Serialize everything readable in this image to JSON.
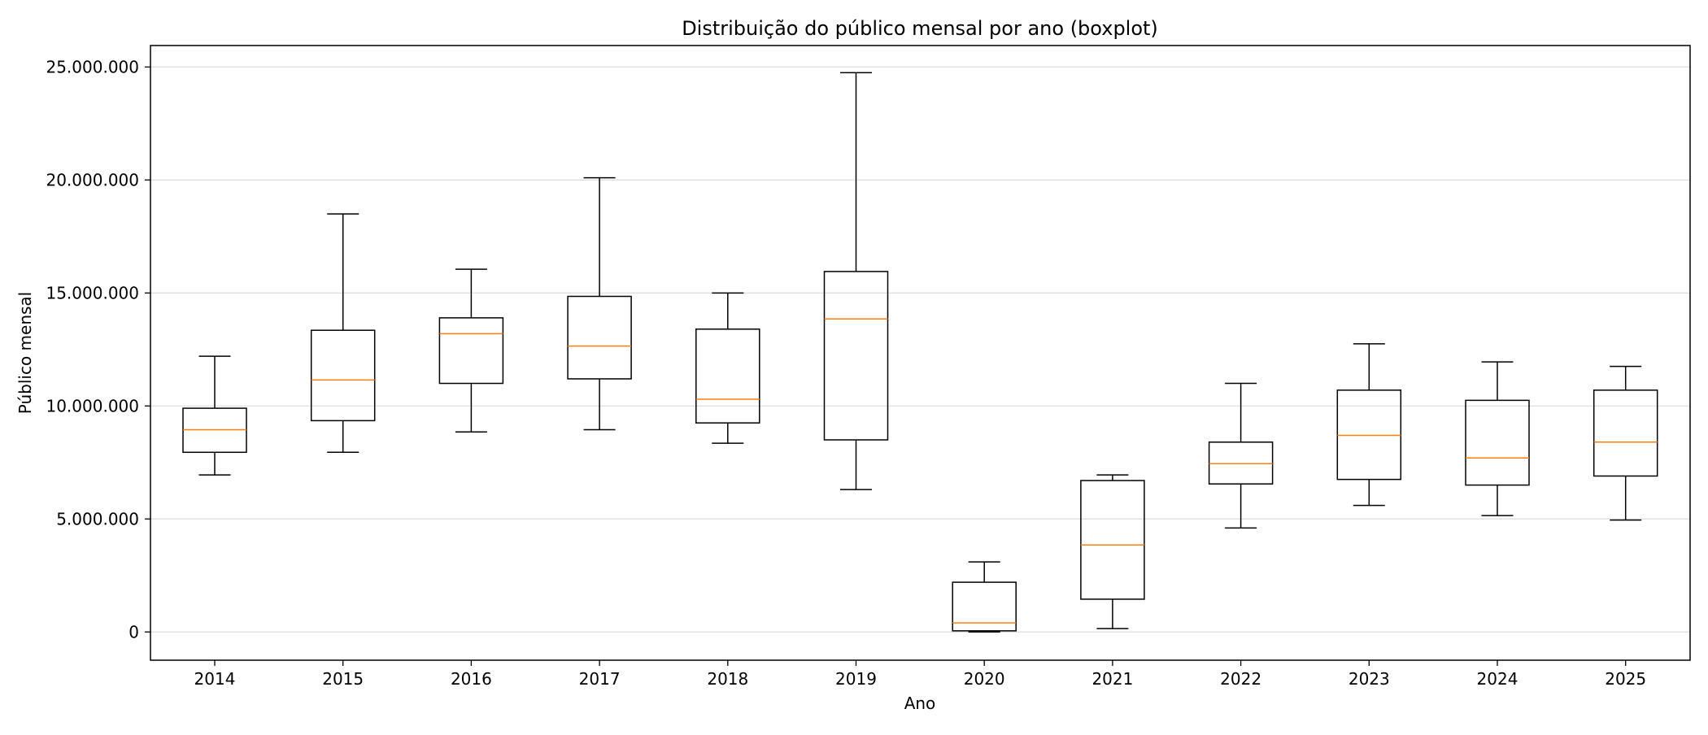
{
  "chart_data": {
    "type": "boxplot",
    "title": "Distribuição do público mensal por ano (boxplot)",
    "xlabel": "Ano",
    "ylabel": "Público mensal",
    "ylim": [
      -1250000,
      25950000
    ],
    "yticks": [
      0,
      5000000,
      10000000,
      15000000,
      20000000,
      25000000
    ],
    "ytick_labels": [
      "0",
      "5.000.000",
      "10.000.000",
      "15.000.000",
      "20.000.000",
      "25.000.000"
    ],
    "grid": "y",
    "colors": {
      "box": "#000000",
      "median": "#ff7f0e",
      "grid": "#dddddd"
    },
    "categories": [
      "2014",
      "2015",
      "2016",
      "2017",
      "2018",
      "2019",
      "2020",
      "2021",
      "2022",
      "2023",
      "2024",
      "2025"
    ],
    "boxes": [
      {
        "year": "2014",
        "whisker_low": 6950000,
        "q1": 7950000,
        "median": 8950000,
        "q3": 9900000,
        "whisker_high": 12200000
      },
      {
        "year": "2015",
        "whisker_low": 7950000,
        "q1": 9350000,
        "median": 11150000,
        "q3": 13350000,
        "whisker_high": 18500000
      },
      {
        "year": "2016",
        "whisker_low": 8850000,
        "q1": 11000000,
        "median": 13200000,
        "q3": 13900000,
        "whisker_high": 16050000
      },
      {
        "year": "2017",
        "whisker_low": 8950000,
        "q1": 11200000,
        "median": 12650000,
        "q3": 14850000,
        "whisker_high": 20100000
      },
      {
        "year": "2018",
        "whisker_low": 8350000,
        "q1": 9250000,
        "median": 10300000,
        "q3": 13400000,
        "whisker_high": 15000000
      },
      {
        "year": "2019",
        "whisker_low": 6300000,
        "q1": 8500000,
        "median": 13850000,
        "q3": 15950000,
        "whisker_high": 24750000
      },
      {
        "year": "2020",
        "whisker_low": 0,
        "q1": 50000,
        "median": 400000,
        "q3": 2200000,
        "whisker_high": 3100000
      },
      {
        "year": "2021",
        "whisker_low": 150000,
        "q1": 1450000,
        "median": 3850000,
        "q3": 6700000,
        "whisker_high": 6950000
      },
      {
        "year": "2022",
        "whisker_low": 4600000,
        "q1": 6550000,
        "median": 7450000,
        "q3": 8400000,
        "whisker_high": 11000000
      },
      {
        "year": "2023",
        "whisker_low": 5600000,
        "q1": 6750000,
        "median": 8700000,
        "q3": 10700000,
        "whisker_high": 12750000
      },
      {
        "year": "2024",
        "whisker_low": 5150000,
        "q1": 6500000,
        "median": 7700000,
        "q3": 10250000,
        "whisker_high": 11950000
      },
      {
        "year": "2025",
        "whisker_low": 4950000,
        "q1": 6900000,
        "median": 8400000,
        "q3": 10700000,
        "whisker_high": 11750000
      }
    ]
  }
}
